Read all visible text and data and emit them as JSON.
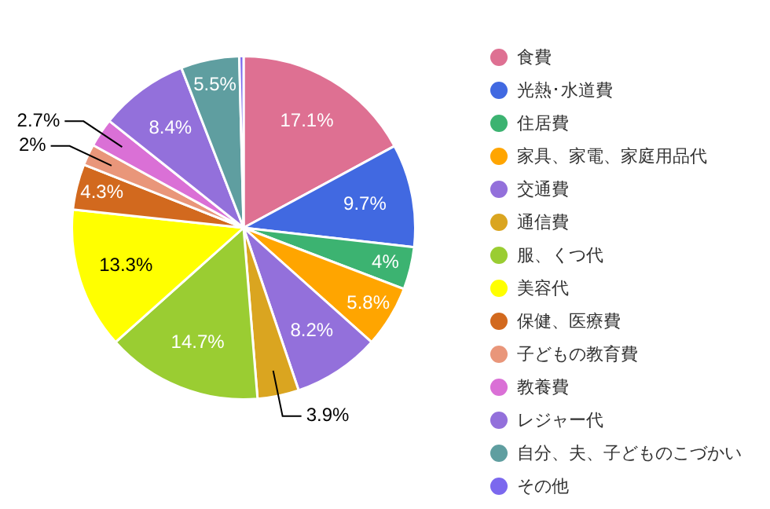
{
  "chart_data": {
    "type": "pie",
    "categories": [
      "食費",
      "光熱･水道費",
      "住居費",
      "家具、家電、家庭用品代",
      "交通費",
      "通信費",
      "服、くつ代",
      "美容代",
      "保健、医療費",
      "子どもの教育費",
      "教養費",
      "レジャー代",
      "自分、夫、子どものこづかい",
      "その他"
    ],
    "values": [
      17.1,
      9.7,
      4,
      5.8,
      8.2,
      3.9,
      14.7,
      13.3,
      4.3,
      2,
      2.7,
      8.4,
      5.5,
      0.4
    ],
    "colors": [
      "#de7092",
      "#4169e1",
      "#3cb371",
      "#ffa500",
      "#9370db",
      "#daa520",
      "#9acd32",
      "#ffff00",
      "#d2691e",
      "#e9967a",
      "#da70d6",
      "#9370db",
      "#5f9ea0",
      "#7b68ee"
    ],
    "value_labels": [
      "17.1%",
      "9.7%",
      "4%",
      "5.8%",
      "8.2%",
      "3.9%",
      "14.7%",
      "13.3%",
      "4.3%",
      "2%",
      "2.7%",
      "8.4%",
      "5.5%",
      null
    ],
    "legend": "right"
  }
}
